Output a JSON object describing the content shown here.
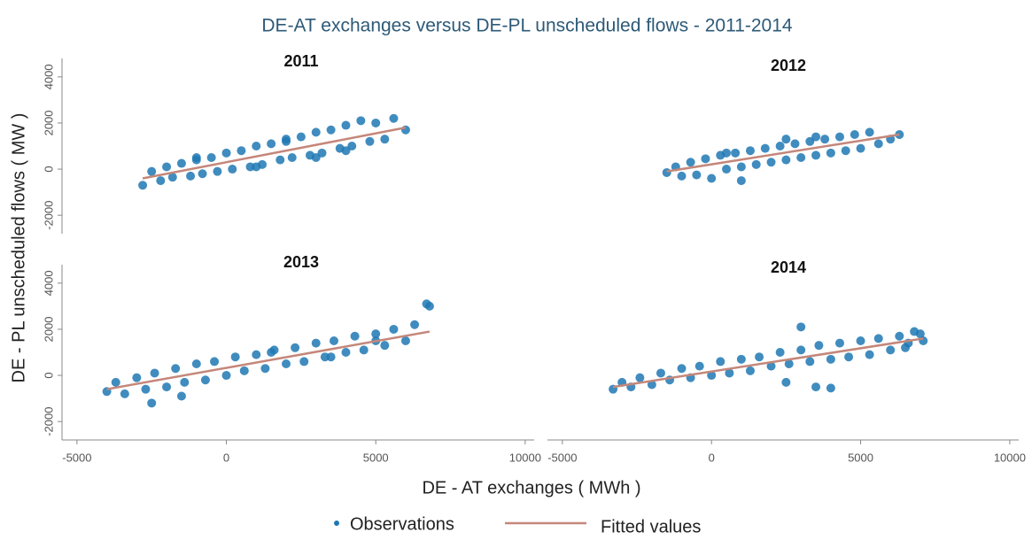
{
  "title": "DE-AT exchanges versus DE-PL unscheduled flows - 2011-2014",
  "xlabel": "DE - AT exchanges ( MWh )",
  "ylabel": "DE - PL unscheduled flows ( MW )",
  "chart_data": [
    {
      "type": "scatter",
      "title": "2011",
      "xlim": [
        -5500,
        10300
      ],
      "ylim": [
        -2800,
        4800
      ],
      "yticks": [
        -2000,
        0,
        2000,
        4000
      ],
      "series": [
        {
          "name": "Observations",
          "color": "#1f78b4",
          "x": [
            -2800,
            -2500,
            -2200,
            -2000,
            -1800,
            -1500,
            -1200,
            -1000,
            -800,
            -500,
            -300,
            0,
            200,
            500,
            800,
            1000,
            1200,
            1500,
            1800,
            2000,
            2200,
            2500,
            2800,
            3000,
            3200,
            3500,
            3800,
            4000,
            4200,
            4500,
            4800,
            5000,
            5300,
            5600,
            6000,
            1000,
            2000,
            3000,
            4000,
            -1000
          ],
          "values": [
            -700,
            -100,
            -500,
            100,
            -350,
            250,
            -300,
            400,
            -200,
            500,
            -100,
            700,
            0,
            800,
            100,
            1000,
            200,
            1100,
            400,
            1300,
            500,
            1400,
            600,
            1600,
            700,
            1700,
            900,
            1900,
            1000,
            2100,
            1200,
            2000,
            1300,
            2200,
            1700,
            100,
            1200,
            500,
            800,
            500
          ]
        },
        {
          "name": "Fitted values",
          "color": "#c4877a",
          "x": [
            -2800,
            6000
          ],
          "values": [
            -400,
            1800
          ]
        }
      ]
    },
    {
      "type": "scatter",
      "title": "2012",
      "xlim": [
        -5500,
        10300
      ],
      "ylim": [
        -2800,
        4800
      ],
      "series": [
        {
          "name": "Observations",
          "color": "#1f78b4",
          "x": [
            -1500,
            -1200,
            -1000,
            -700,
            -500,
            -200,
            0,
            300,
            500,
            800,
            1000,
            1300,
            1500,
            1800,
            2000,
            2300,
            2500,
            2800,
            3000,
            3300,
            3500,
            3800,
            4000,
            4300,
            4500,
            4800,
            5000,
            5300,
            5600,
            6000,
            6300,
            1000,
            2500,
            3500,
            500
          ],
          "values": [
            -150,
            100,
            -300,
            300,
            -250,
            450,
            -400,
            600,
            0,
            700,
            100,
            800,
            200,
            900,
            300,
            1000,
            400,
            1100,
            500,
            1200,
            600,
            1300,
            700,
            1400,
            800,
            1500,
            900,
            1600,
            1100,
            1300,
            1500,
            -500,
            1300,
            1400,
            700
          ]
        },
        {
          "name": "Fitted values",
          "color": "#c4877a",
          "x": [
            -1500,
            6300
          ],
          "values": [
            -100,
            1500
          ]
        }
      ]
    },
    {
      "type": "scatter",
      "title": "2013",
      "xlim": [
        -5500,
        10300
      ],
      "ylim": [
        -2800,
        4800
      ],
      "xticks": [
        -5000,
        0,
        5000,
        10000
      ],
      "yticks": [
        -2000,
        0,
        2000,
        4000
      ],
      "series": [
        {
          "name": "Observations",
          "color": "#1f78b4",
          "x": [
            -4000,
            -3700,
            -3400,
            -3000,
            -2700,
            -2400,
            -2000,
            -1700,
            -1400,
            -1000,
            -700,
            -400,
            0,
            300,
            600,
            1000,
            1300,
            1600,
            2000,
            2300,
            2600,
            3000,
            3300,
            3600,
            4000,
            4300,
            4600,
            5000,
            5300,
            5600,
            6000,
            6300,
            6800,
            6700,
            -2500,
            -1500,
            1500,
            3500,
            5000
          ],
          "values": [
            -700,
            -300,
            -800,
            -100,
            -600,
            100,
            -500,
            300,
            -300,
            500,
            -200,
            600,
            0,
            800,
            200,
            900,
            300,
            1100,
            500,
            1200,
            600,
            1400,
            800,
            1500,
            1000,
            1700,
            1100,
            1800,
            1300,
            2000,
            1500,
            2200,
            3000,
            3100,
            -1200,
            -900,
            1000,
            800,
            1500
          ]
        },
        {
          "name": "Fitted values",
          "color": "#c4877a",
          "x": [
            -4000,
            6800
          ],
          "values": [
            -600,
            1900
          ]
        }
      ]
    },
    {
      "type": "scatter",
      "title": "2014",
      "xlim": [
        -5500,
        10300
      ],
      "ylim": [
        -2800,
        4800
      ],
      "xticks": [
        -5000,
        0,
        5000,
        10000
      ],
      "series": [
        {
          "name": "Observations",
          "color": "#1f78b4",
          "x": [
            -3300,
            -3000,
            -2700,
            -2400,
            -2000,
            -1700,
            -1400,
            -1000,
            -700,
            -400,
            0,
            300,
            600,
            1000,
            1300,
            1600,
            2000,
            2300,
            2600,
            3000,
            3300,
            3600,
            4000,
            4300,
            4600,
            5000,
            5300,
            5600,
            6000,
            6300,
            6600,
            7000,
            7100,
            2500,
            3500,
            4000,
            3000,
            6800,
            6500
          ],
          "values": [
            -600,
            -300,
            -500,
            -100,
            -400,
            100,
            -200,
            300,
            -100,
            400,
            0,
            600,
            100,
            700,
            200,
            800,
            400,
            1000,
            500,
            1100,
            600,
            1300,
            700,
            1400,
            800,
            1500,
            900,
            1600,
            1100,
            1700,
            1400,
            1800,
            1500,
            -300,
            -500,
            -550,
            2100,
            1900,
            1200
          ]
        },
        {
          "name": "Fitted values",
          "color": "#c4877a",
          "x": [
            -3300,
            7100
          ],
          "values": [
            -500,
            1600
          ]
        }
      ]
    }
  ]
}
